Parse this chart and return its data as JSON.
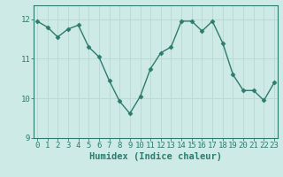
{
  "x": [
    0,
    1,
    2,
    3,
    4,
    5,
    6,
    7,
    8,
    9,
    10,
    11,
    12,
    13,
    14,
    15,
    16,
    17,
    18,
    19,
    20,
    21,
    22,
    23
  ],
  "y": [
    11.95,
    11.8,
    11.55,
    11.75,
    11.85,
    11.3,
    11.05,
    10.45,
    9.93,
    9.62,
    10.05,
    10.75,
    11.15,
    11.3,
    11.95,
    11.95,
    11.7,
    11.95,
    11.4,
    10.6,
    10.2,
    10.2,
    9.95,
    10.4
  ],
  "line_color": "#2d7b6e",
  "marker": "D",
  "markersize": 2.5,
  "linewidth": 1.0,
  "background_color": "#ceeae6",
  "grid_color": "#b8d8d4",
  "xlabel": "Humidex (Indice chaleur)",
  "ylim": [
    9,
    12.35
  ],
  "yticks": [
    9,
    10,
    11,
    12
  ],
  "xticks": [
    0,
    1,
    2,
    3,
    4,
    5,
    6,
    7,
    8,
    9,
    10,
    11,
    12,
    13,
    14,
    15,
    16,
    17,
    18,
    19,
    20,
    21,
    22,
    23
  ],
  "tick_color": "#2d7b6e",
  "xlabel_fontsize": 7.5,
  "tick_fontsize": 6.5
}
